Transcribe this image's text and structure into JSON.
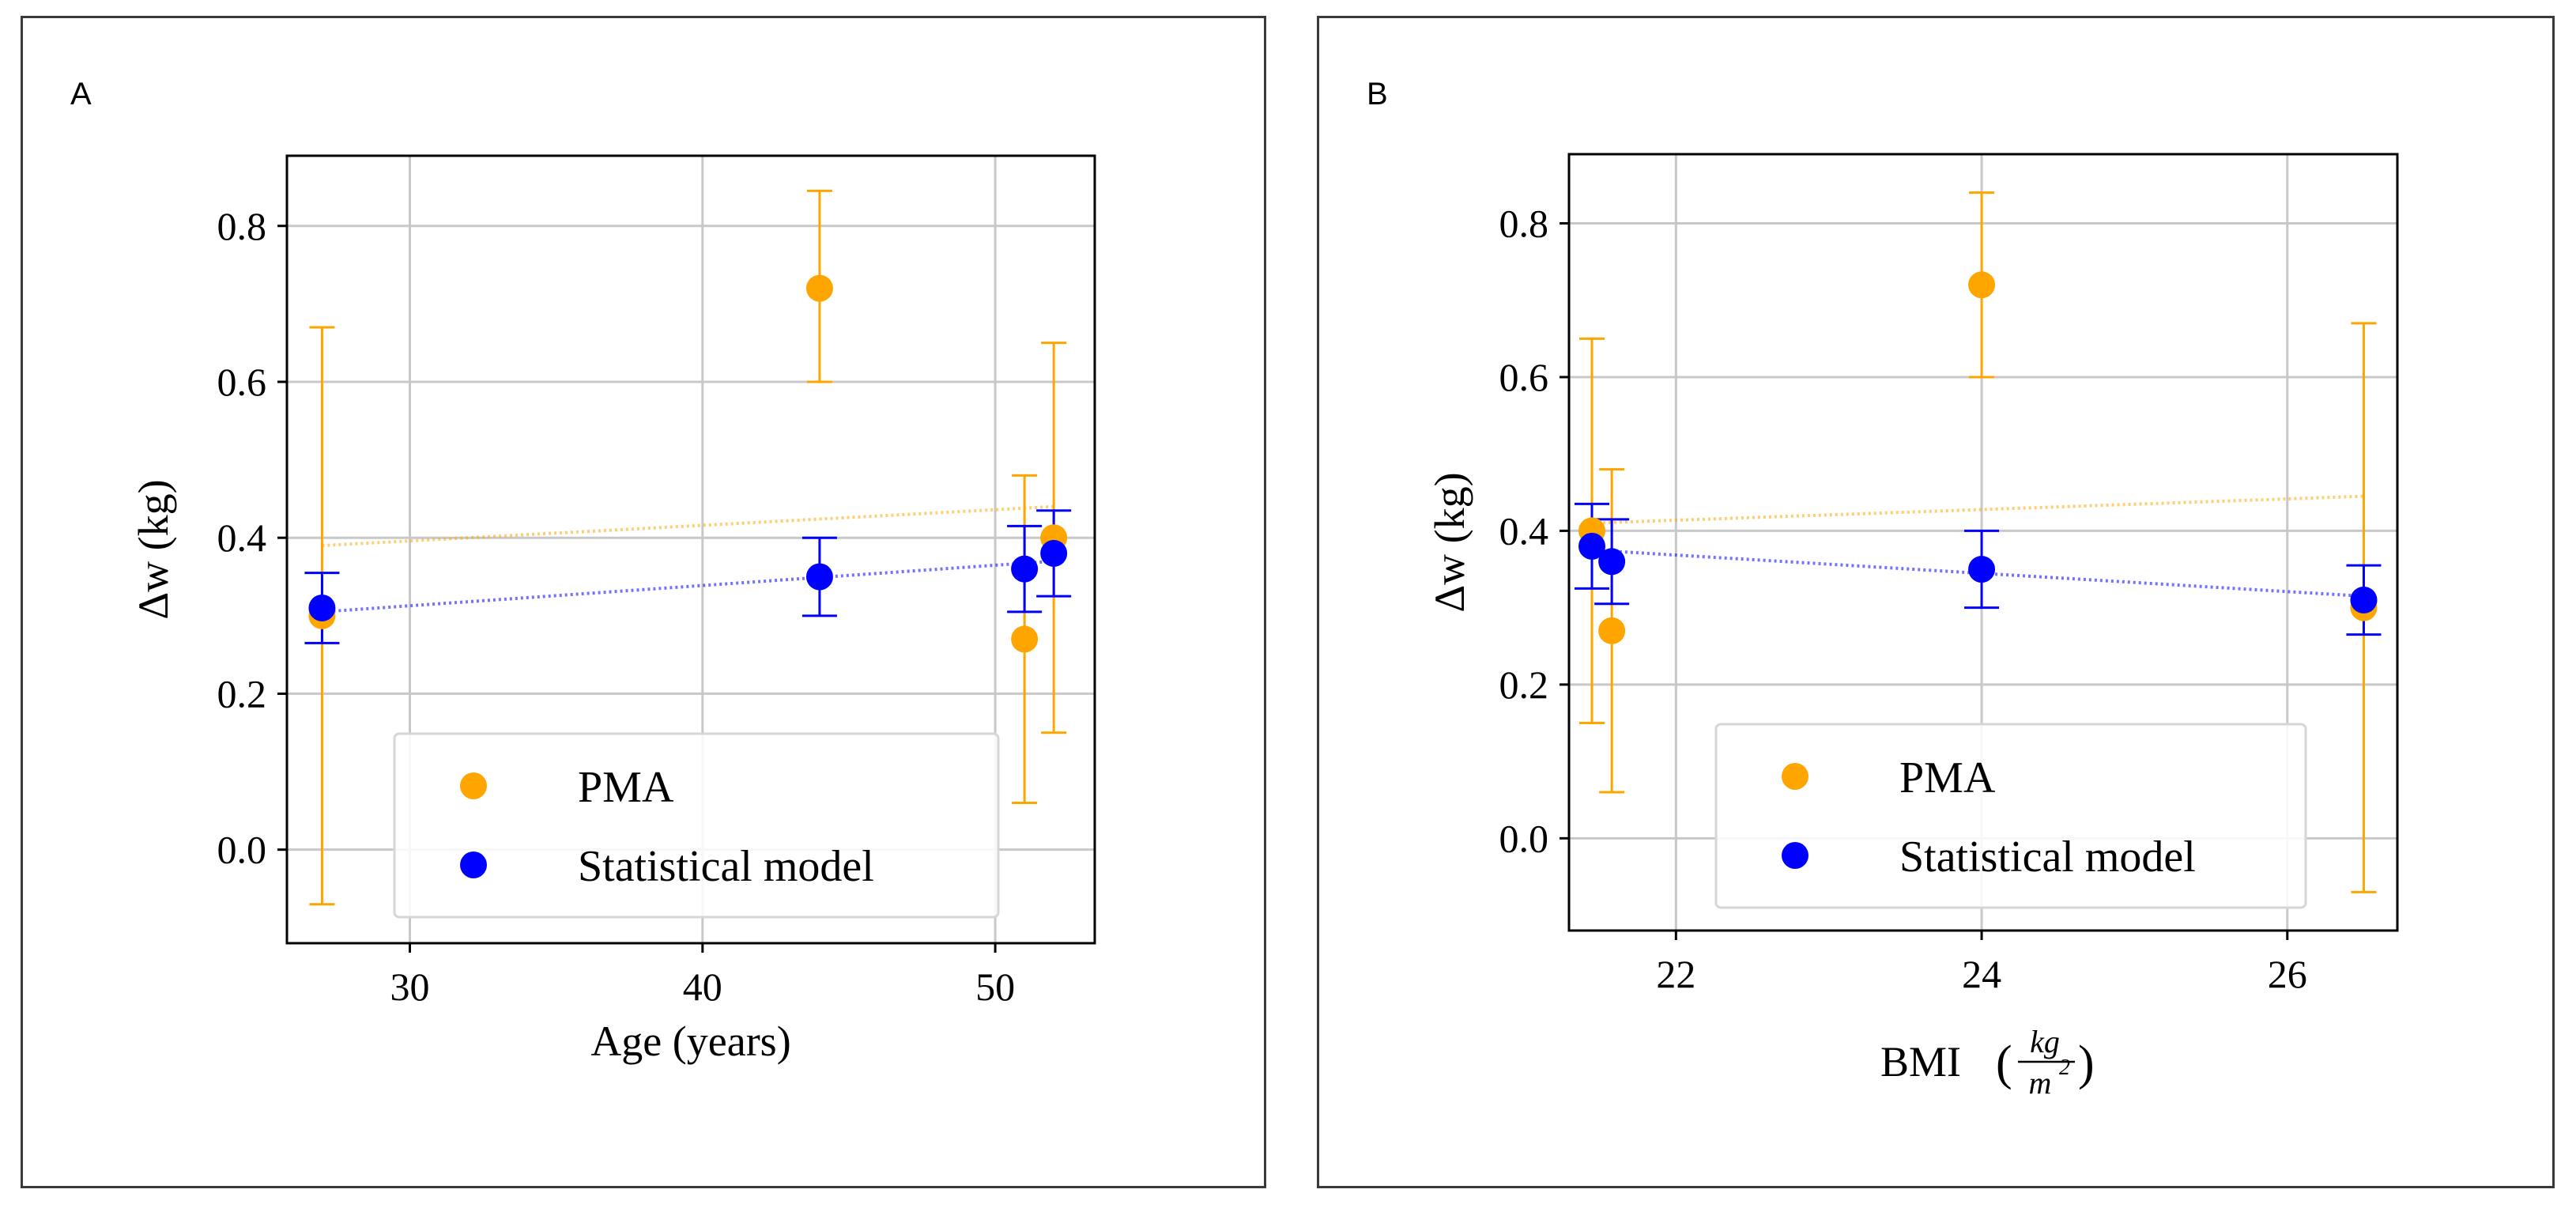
{
  "chart_data": [
    {
      "panel": "A",
      "type": "scatter",
      "xlabel": "Age (years)",
      "ylabel": "Δw (kg)",
      "xlim": [
        25.8,
        53.4
      ],
      "ylim": [
        -0.12,
        0.89
      ],
      "xticks": [
        30,
        40,
        50
      ],
      "yticks": [
        0.0,
        0.2,
        0.4,
        0.6,
        0.8
      ],
      "grid": true,
      "legend_position": "lower-right",
      "series": [
        {
          "name": "PMA",
          "color": "#ffa500",
          "points": [
            {
              "x": 27,
              "y": 0.3,
              "yerr_low": -0.07,
              "yerr_high": 0.67
            },
            {
              "x": 44,
              "y": 0.72,
              "yerr_low": 0.6,
              "yerr_high": 0.845
            },
            {
              "x": 51,
              "y": 0.27,
              "yerr_low": 0.06,
              "yerr_high": 0.48
            },
            {
              "x": 52,
              "y": 0.4,
              "yerr_low": 0.15,
              "yerr_high": 0.65
            }
          ],
          "trend": {
            "x": [
              27,
              52
            ],
            "y": [
              0.39,
              0.44
            ]
          }
        },
        {
          "name": "Statistical model",
          "color": "#0000ff",
          "points": [
            {
              "x": 27,
              "y": 0.31,
              "yerr_low": 0.265,
              "yerr_high": 0.355
            },
            {
              "x": 44,
              "y": 0.35,
              "yerr_low": 0.3,
              "yerr_high": 0.4
            },
            {
              "x": 51,
              "y": 0.36,
              "yerr_low": 0.305,
              "yerr_high": 0.415
            },
            {
              "x": 52,
              "y": 0.38,
              "yerr_low": 0.325,
              "yerr_high": 0.435
            }
          ],
          "trend": {
            "x": [
              27,
              52
            ],
            "y": [
              0.305,
              0.37
            ]
          }
        }
      ]
    },
    {
      "panel": "B",
      "type": "scatter",
      "xlabel": "BMI",
      "xlabel_fraction": {
        "numerator": "kg",
        "denominator": "m",
        "exponent": "2"
      },
      "ylabel": "Δw (kg)",
      "xlim": [
        21.3,
        26.72
      ],
      "ylim": [
        -0.12,
        0.89
      ],
      "xticks": [
        22,
        24,
        26
      ],
      "yticks": [
        0.0,
        0.2,
        0.4,
        0.6,
        0.8
      ],
      "grid": true,
      "legend_position": "lower-center",
      "series": [
        {
          "name": "PMA",
          "color": "#ffa500",
          "points": [
            {
              "x": 21.45,
              "y": 0.4,
              "yerr_low": 0.15,
              "yerr_high": 0.65
            },
            {
              "x": 21.58,
              "y": 0.27,
              "yerr_low": 0.06,
              "yerr_high": 0.48
            },
            {
              "x": 24.0,
              "y": 0.72,
              "yerr_low": 0.6,
              "yerr_high": 0.84
            },
            {
              "x": 26.5,
              "y": 0.3,
              "yerr_low": -0.07,
              "yerr_high": 0.67
            }
          ],
          "trend": {
            "x": [
              21.45,
              26.5
            ],
            "y": [
              0.41,
              0.445
            ]
          }
        },
        {
          "name": "Statistical model",
          "color": "#0000ff",
          "points": [
            {
              "x": 21.45,
              "y": 0.38,
              "yerr_low": 0.325,
              "yerr_high": 0.435
            },
            {
              "x": 21.58,
              "y": 0.36,
              "yerr_low": 0.305,
              "yerr_high": 0.415
            },
            {
              "x": 24.0,
              "y": 0.35,
              "yerr_low": 0.3,
              "yerr_high": 0.4
            },
            {
              "x": 26.5,
              "y": 0.31,
              "yerr_low": 0.265,
              "yerr_high": 0.355
            }
          ],
          "trend": {
            "x": [
              21.45,
              26.5
            ],
            "y": [
              0.375,
              0.315
            ]
          }
        }
      ]
    }
  ]
}
